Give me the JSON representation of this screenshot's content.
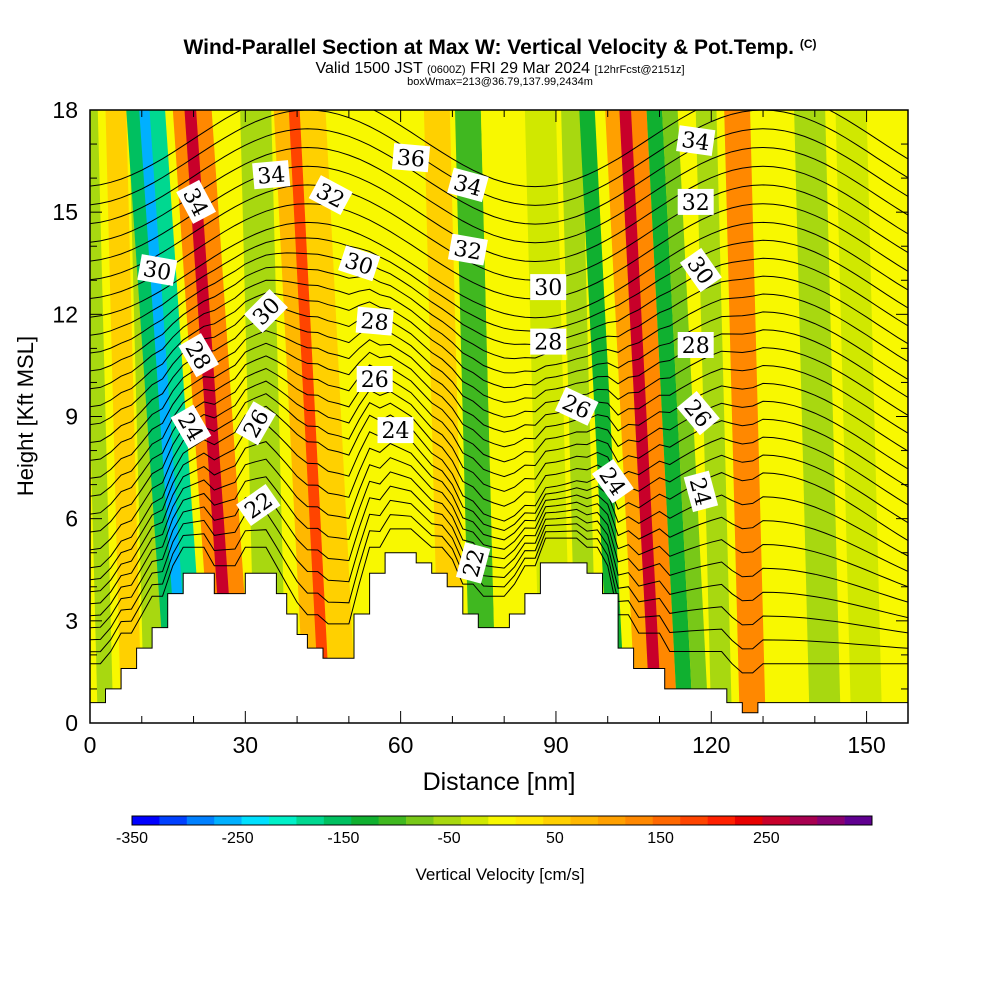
{
  "title": {
    "main": "Wind-Parallel Section at Max W: Vertical Velocity & Pot.Temp.",
    "copyright": "(C)",
    "valid_prefix": "Valid 1500 JST",
    "valid_utc": "(0600Z)",
    "valid_date": "FRI 29 Mar 2024",
    "forecast": "[12hrFcst@2151z]",
    "box": "boxWmax=213@36.79,137.99,2434m"
  },
  "chart_data": {
    "type": "heatmap",
    "xlabel": "Distance [nm]",
    "ylabel": "Height [Kft MSL]",
    "xlim": [
      0,
      158
    ],
    "ylim": [
      0,
      18
    ],
    "x_ticks": [
      0,
      30,
      60,
      90,
      120,
      150
    ],
    "y_ticks": [
      0,
      3,
      6,
      9,
      12,
      15,
      18
    ],
    "colorbar": {
      "label": "Vertical Velocity [cm/s]",
      "range": [
        -350,
        350
      ],
      "tick_values": [
        -350,
        -250,
        -150,
        -50,
        50,
        150,
        250
      ],
      "tick_labels": [
        "-350",
        "-250",
        "-150",
        "-50",
        "50",
        "150",
        "250"
      ],
      "colors": [
        "#0000ff",
        "#0040ff",
        "#0080ff",
        "#00b0ff",
        "#00e0ff",
        "#00f0c8",
        "#00d890",
        "#00c060",
        "#10b030",
        "#40b820",
        "#78c818",
        "#a8d810",
        "#d0e800",
        "#f8f800",
        "#ffe800",
        "#ffd000",
        "#ffb800",
        "#ffa000",
        "#ff8800",
        "#ff6800",
        "#ff4400",
        "#ff2000",
        "#e80000",
        "#c8002a",
        "#a80050",
        "#880070",
        "#600090"
      ]
    },
    "vertical_velocity_bands": [
      {
        "x": 0,
        "w": 8,
        "value": 0
      },
      {
        "x": 3,
        "w": 3,
        "value": -40
      },
      {
        "x": 8,
        "w": 4,
        "value": 60
      },
      {
        "x": 13,
        "w": 5,
        "value": -60
      },
      {
        "x": 17,
        "w": 4,
        "value": -160
      },
      {
        "x": 19,
        "w": 3,
        "value": -260
      },
      {
        "x": 21,
        "w": 3,
        "value": -190
      },
      {
        "x": 25.5,
        "w": 3,
        "value": 130
      },
      {
        "x": 27.5,
        "w": 2.5,
        "value": 270
      },
      {
        "x": 30,
        "w": 3,
        "value": 140
      },
      {
        "x": 35,
        "w": 6,
        "value": -40
      },
      {
        "x": 43,
        "w": 3,
        "value": 90
      },
      {
        "x": 45.5,
        "w": 2.2,
        "value": 170
      },
      {
        "x": 49,
        "w": 5,
        "value": 40
      },
      {
        "x": 60,
        "w": 6,
        "value": 10
      },
      {
        "x": 70,
        "w": 5,
        "value": 40
      },
      {
        "x": 76,
        "w": 5,
        "value": -110
      },
      {
        "x": 82,
        "w": 7,
        "value": 0
      },
      {
        "x": 90,
        "w": 6,
        "value": -20
      },
      {
        "x": 96,
        "w": 4,
        "value": -40
      },
      {
        "x": 102,
        "w": 3,
        "value": -130
      },
      {
        "x": 107,
        "w": 3,
        "value": 110
      },
      {
        "x": 109.5,
        "w": 2.5,
        "value": 250
      },
      {
        "x": 112,
        "w": 3,
        "value": 140
      },
      {
        "x": 115,
        "w": 3,
        "value": -140
      },
      {
        "x": 118,
        "w": 3,
        "value": -90
      },
      {
        "x": 122,
        "w": 4,
        "value": -50
      },
      {
        "x": 128,
        "w": 5,
        "value": 130
      },
      {
        "x": 135,
        "w": 6,
        "value": 10
      },
      {
        "x": 142,
        "w": 6,
        "value": -50
      },
      {
        "x": 150,
        "w": 6,
        "value": -30
      }
    ],
    "terrain_kft": [
      [
        0,
        0.6
      ],
      [
        3,
        0.6
      ],
      [
        3,
        1.0
      ],
      [
        6,
        1.0
      ],
      [
        6,
        1.6
      ],
      [
        9,
        1.6
      ],
      [
        9,
        2.2
      ],
      [
        12,
        2.2
      ],
      [
        12,
        2.8
      ],
      [
        15,
        2.8
      ],
      [
        15,
        3.8
      ],
      [
        18,
        3.8
      ],
      [
        18,
        4.4
      ],
      [
        24,
        4.4
      ],
      [
        24,
        3.8
      ],
      [
        30,
        3.8
      ],
      [
        30,
        4.4
      ],
      [
        36,
        4.4
      ],
      [
        36,
        3.8
      ],
      [
        38,
        3.8
      ],
      [
        38,
        3.2
      ],
      [
        40,
        3.2
      ],
      [
        40,
        2.6
      ],
      [
        42,
        2.6
      ],
      [
        42,
        2.2
      ],
      [
        45,
        2.2
      ],
      [
        45,
        1.9
      ],
      [
        51,
        1.9
      ],
      [
        51,
        3.2
      ],
      [
        54,
        3.2
      ],
      [
        54,
        4.4
      ],
      [
        57,
        4.4
      ],
      [
        57,
        5.0
      ],
      [
        63,
        5.0
      ],
      [
        63,
        4.7
      ],
      [
        66,
        4.7
      ],
      [
        66,
        4.4
      ],
      [
        69,
        4.4
      ],
      [
        69,
        4.0
      ],
      [
        72,
        4.0
      ],
      [
        72,
        3.2
      ],
      [
        75,
        3.2
      ],
      [
        75,
        2.8
      ],
      [
        81,
        2.8
      ],
      [
        81,
        3.2
      ],
      [
        84,
        3.2
      ],
      [
        84,
        3.8
      ],
      [
        87,
        3.8
      ],
      [
        87,
        4.7
      ],
      [
        96,
        4.7
      ],
      [
        96,
        4.4
      ],
      [
        99,
        4.4
      ],
      [
        99,
        3.8
      ],
      [
        102,
        3.8
      ],
      [
        102,
        2.2
      ],
      [
        105,
        2.2
      ],
      [
        105,
        1.6
      ],
      [
        111,
        1.6
      ],
      [
        111,
        1.0
      ],
      [
        123,
        1.0
      ],
      [
        123,
        0.6
      ],
      [
        126,
        0.6
      ],
      [
        126,
        0.3
      ],
      [
        129,
        0.3
      ],
      [
        129,
        0.6
      ],
      [
        158,
        0.6
      ]
    ],
    "contour_labels": [
      {
        "text": "34",
        "x": 20.5,
        "y": 15.3,
        "angle": 62
      },
      {
        "text": "30",
        "x": 13,
        "y": 13.3,
        "angle": 10
      },
      {
        "text": "28",
        "x": 21,
        "y": 10.8,
        "angle": 60
      },
      {
        "text": "24",
        "x": 19.5,
        "y": 8.7,
        "angle": 60
      },
      {
        "text": "34",
        "x": 35,
        "y": 16.1,
        "angle": -5
      },
      {
        "text": "30",
        "x": 34,
        "y": 12.1,
        "angle": -45
      },
      {
        "text": "26",
        "x": 32,
        "y": 8.8,
        "angle": -60
      },
      {
        "text": "22",
        "x": 32.5,
        "y": 6.4,
        "angle": -35
      },
      {
        "text": "32",
        "x": 46.5,
        "y": 15.5,
        "angle": 28
      },
      {
        "text": "30",
        "x": 52,
        "y": 13.5,
        "angle": 18
      },
      {
        "text": "28",
        "x": 55,
        "y": 11.8,
        "angle": 5
      },
      {
        "text": "26",
        "x": 55,
        "y": 10.1,
        "angle": 0
      },
      {
        "text": "24",
        "x": 59,
        "y": 8.6,
        "angle": 0
      },
      {
        "text": "36",
        "x": 62,
        "y": 16.6,
        "angle": 5
      },
      {
        "text": "34",
        "x": 73,
        "y": 15.8,
        "angle": 15
      },
      {
        "text": "32",
        "x": 73,
        "y": 13.9,
        "angle": 10
      },
      {
        "text": "30",
        "x": 88.5,
        "y": 12.8,
        "angle": 0
      },
      {
        "text": "28",
        "x": 88.5,
        "y": 11.2,
        "angle": 0
      },
      {
        "text": "26",
        "x": 94,
        "y": 9.3,
        "angle": 25
      },
      {
        "text": "22",
        "x": 74,
        "y": 4.7,
        "angle": -75
      },
      {
        "text": "24",
        "x": 101,
        "y": 7.1,
        "angle": 55
      },
      {
        "text": "34",
        "x": 117,
        "y": 17.1,
        "angle": 8
      },
      {
        "text": "32",
        "x": 117,
        "y": 15.3,
        "angle": 0
      },
      {
        "text": "30",
        "x": 118,
        "y": 13.3,
        "angle": 55
      },
      {
        "text": "28",
        "x": 117,
        "y": 11.1,
        "angle": 0
      },
      {
        "text": "26",
        "x": 117.5,
        "y": 9.1,
        "angle": 50
      },
      {
        "text": "24",
        "x": 118,
        "y": 6.8,
        "angle": 75
      }
    ]
  }
}
